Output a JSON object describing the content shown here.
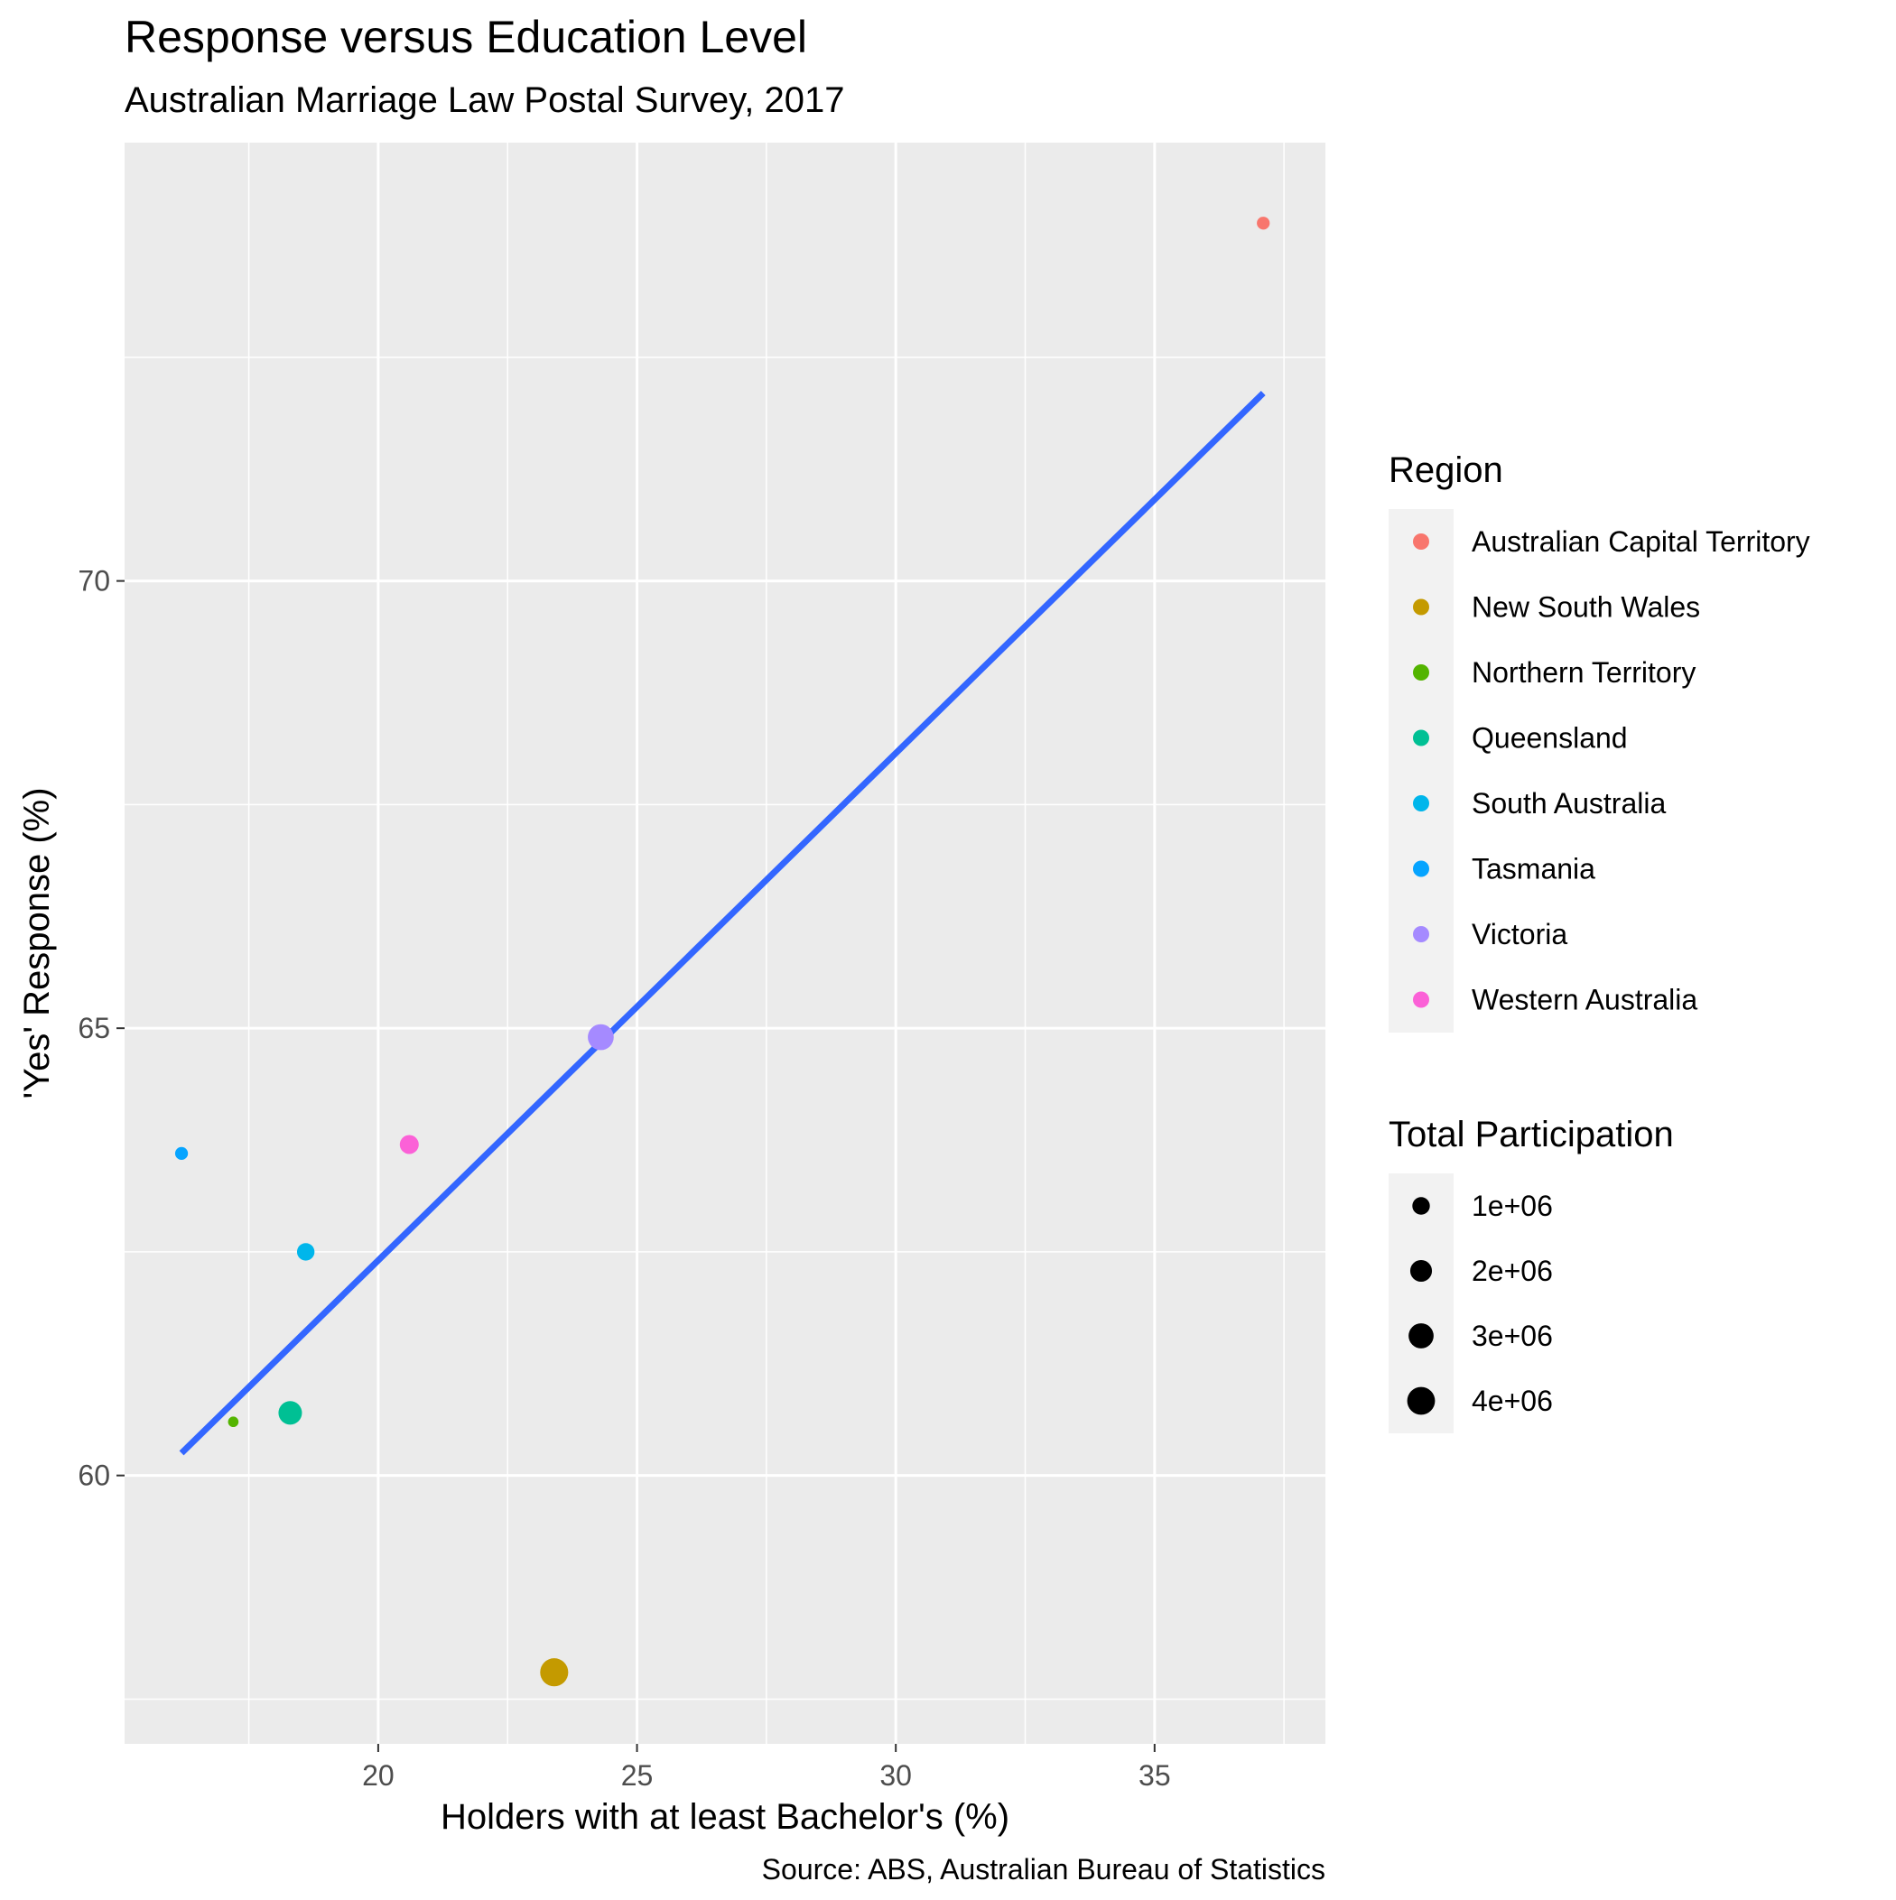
{
  "chart_data": {
    "type": "scatter",
    "title": "Response versus Education Level",
    "subtitle": "Australian Marriage Law Postal Survey, 2017",
    "xlabel": "Holders with at least Bachelor's (%)",
    "ylabel": "'Yes' Response (%)",
    "caption": "Source: ABS, Australian Bureau of Statistics",
    "xlim": [
      15.1,
      38.3
    ],
    "ylim": [
      57.0,
      74.9
    ],
    "x_ticks": [
      20,
      25,
      30,
      35
    ],
    "x_tick_labels": [
      "20",
      "25",
      "30",
      "35"
    ],
    "y_ticks": [
      60,
      65,
      70
    ],
    "y_tick_labels": [
      "60",
      "65",
      "70"
    ],
    "grid": true,
    "legend_position": "right",
    "points": [
      {
        "region": "Australian Capital Territory",
        "x": 37.1,
        "y": 74.0,
        "participation": 0.3,
        "color": "#F8766D"
      },
      {
        "region": "New South Wales",
        "x": 23.4,
        "y": 57.8,
        "participation": 4.1,
        "color": "#C49A00"
      },
      {
        "region": "Northern Territory",
        "x": 17.2,
        "y": 60.6,
        "participation": 0.1,
        "color": "#53B400"
      },
      {
        "region": "Queensland",
        "x": 18.3,
        "y": 60.7,
        "participation": 2.5,
        "color": "#00C094"
      },
      {
        "region": "South Australia",
        "x": 18.6,
        "y": 62.5,
        "participation": 1.0,
        "color": "#00B6EB"
      },
      {
        "region": "Tasmania",
        "x": 16.2,
        "y": 63.6,
        "participation": 0.3,
        "color": "#06A4FF"
      },
      {
        "region": "Victoria",
        "x": 24.3,
        "y": 64.9,
        "participation": 3.3,
        "color": "#A58AFF"
      },
      {
        "region": "Western Australia",
        "x": 20.6,
        "y": 63.7,
        "participation": 1.3,
        "color": "#FB61D7"
      }
    ],
    "regression_line": {
      "color": "#3366FF",
      "x": [
        16.2,
        37.1
      ],
      "y": [
        60.25,
        72.1
      ]
    },
    "legends": {
      "color": {
        "title": "Region",
        "items": [
          {
            "label": "Australian Capital Territory",
            "color": "#F8766D"
          },
          {
            "label": "New South Wales",
            "color": "#C49A00"
          },
          {
            "label": "Northern Territory",
            "color": "#53B400"
          },
          {
            "label": "Queensland",
            "color": "#00C094"
          },
          {
            "label": "South Australia",
            "color": "#00B6EB"
          },
          {
            "label": "Tasmania",
            "color": "#06A4FF"
          },
          {
            "label": "Victoria",
            "color": "#A58AFF"
          },
          {
            "label": "Western Australia",
            "color": "#FB61D7"
          }
        ]
      },
      "size": {
        "title": "Total Participation",
        "items": [
          {
            "label": "1e+06",
            "value": 1.0
          },
          {
            "label": "2e+06",
            "value": 2.0
          },
          {
            "label": "3e+06",
            "value": 3.0
          },
          {
            "label": "4e+06",
            "value": 4.0
          }
        ]
      }
    }
  }
}
